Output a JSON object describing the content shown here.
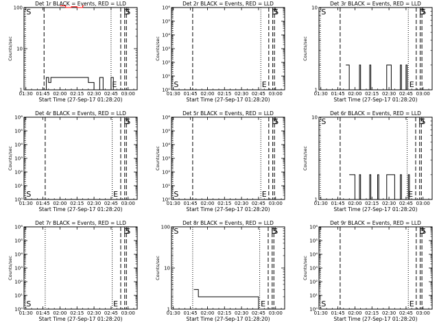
{
  "chart_data": [
    {
      "type": "line",
      "title": "Det 1r BLACK = Events, RED = LLD",
      "xlabel": "Start Time (27-Sep-17 01:28:20)",
      "ylabel": "Counts/sec",
      "ylim": [
        1,
        100
      ],
      "yscale": "log",
      "yticks": [
        {
          "v": 1,
          "t": "1"
        },
        {
          "v": 10,
          "t": "10"
        },
        {
          "v": 100,
          "t": "100"
        }
      ],
      "xticks": [
        "01:30",
        "01:45",
        "02:00",
        "02:15",
        "02:30",
        "02:45",
        "03:00"
      ],
      "xlim": [
        "01:28:20",
        "03:08:00"
      ],
      "vlines": [
        {
          "time": "01:29:30",
          "style": "dotted",
          "label": "S"
        },
        {
          "time": "01:46:00",
          "style": "dashed"
        },
        {
          "time": "02:45:00",
          "style": "dotted",
          "label": "E"
        },
        {
          "time": "02:53:30",
          "style": "dashed"
        },
        {
          "time": "02:57:00",
          "style": "dashed",
          "label": "S"
        },
        {
          "time": "02:58:30",
          "style": "dashed",
          "label": "D"
        }
      ],
      "series": [
        {
          "color": "#000000",
          "style": "step",
          "times": [
            "01:28:20",
            "01:48:00",
            "01:50:00",
            "01:52:00",
            "02:25:00",
            "02:30:00",
            "02:35:00",
            "02:38:00",
            "02:45:00",
            "02:47:00"
          ],
          "values": [
            1,
            2,
            1.5,
            2,
            1.5,
            1,
            2,
            1,
            2,
            1
          ]
        },
        {
          "color": "#ff0000",
          "style": "step",
          "times": [
            "02:00:00",
            "02:05:00",
            "02:10:00",
            "02:15:00",
            "02:20:00"
          ],
          "values": [
            110,
            100,
            105,
            100,
            110
          ]
        }
      ]
    },
    {
      "type": "line",
      "title": "Det 2r BLACK = Events, RED = LLD",
      "xlabel": "Start Time (27-Sep-17 01:28:20)",
      "ylabel": "Counts/sec",
      "ylim": [
        1,
        1000000
      ],
      "yscale": "log",
      "yticks": [
        {
          "v": 1,
          "t": "10⁰"
        },
        {
          "v": 10,
          "t": "10¹"
        },
        {
          "v": 100,
          "t": "10²"
        },
        {
          "v": 1000,
          "t": "10³"
        },
        {
          "v": 10000,
          "t": "10⁴"
        },
        {
          "v": 100000,
          "t": "10⁵"
        },
        {
          "v": 1000000,
          "t": "10⁶"
        }
      ],
      "xticks": [
        "01:30",
        "01:45",
        "02:00",
        "02:15",
        "02:30",
        "02:45",
        "03:00"
      ],
      "xlim": [
        "01:28:20",
        "03:08:00"
      ],
      "vlines": [
        {
          "time": "01:29:30",
          "style": "dotted",
          "label": "S"
        },
        {
          "time": "01:47:00",
          "style": "dashed"
        },
        {
          "time": "02:47:00",
          "style": "dotted",
          "label": "E"
        },
        {
          "time": "02:54:00",
          "style": "dashed"
        },
        {
          "time": "02:57:30",
          "style": "dashed",
          "label": "S"
        },
        {
          "time": "02:59:00",
          "style": "dashed",
          "label": "D"
        }
      ],
      "series": []
    },
    {
      "type": "line",
      "title": "Det 3r BLACK = Events, RED = LLD",
      "xlabel": "Start Time (27-Sep-17 01:28:20)",
      "ylabel": "Counts/sec",
      "ylim": [
        1,
        10
      ],
      "yscale": "log",
      "yticks": [
        {
          "v": 1,
          "t": "1"
        },
        {
          "v": 10,
          "t": "10"
        }
      ],
      "xticks": [
        "01:30",
        "01:45",
        "02:00",
        "02:15",
        "02:30",
        "02:45",
        "03:00"
      ],
      "xlim": [
        "01:28:20",
        "03:08:00"
      ],
      "vlines": [
        {
          "time": "01:29:30",
          "style": "dotted",
          "label": "S"
        },
        {
          "time": "01:47:00",
          "style": "dashed"
        },
        {
          "time": "02:47:00",
          "style": "dotted",
          "label": "E"
        },
        {
          "time": "02:54:00",
          "style": "dashed"
        },
        {
          "time": "02:57:30",
          "style": "dashed",
          "label": "S"
        },
        {
          "time": "02:59:00",
          "style": "dashed",
          "label": "D"
        }
      ],
      "series": [
        {
          "color": "#000000",
          "style": "step",
          "times": [
            "01:52:00",
            "01:55:00",
            "02:04:00",
            "02:05:00",
            "02:13:00",
            "02:14:00",
            "02:28:00",
            "02:32:00",
            "02:40:00",
            "02:41:00",
            "02:45:00",
            "02:46:00"
          ],
          "values": [
            2,
            1,
            2,
            1,
            2,
            1,
            2,
            1,
            2,
            1,
            2,
            1
          ]
        }
      ]
    },
    {
      "type": "line",
      "title": "Det 4r BLACK = Events, RED = LLD",
      "xlabel": "Start Time (27-Sep-17 01:28:20)",
      "ylabel": "Counts/sec",
      "ylim": [
        1,
        1000000
      ],
      "yscale": "log",
      "yticks": [
        {
          "v": 1,
          "t": "10⁰"
        },
        {
          "v": 10,
          "t": "10¹"
        },
        {
          "v": 100,
          "t": "10²"
        },
        {
          "v": 1000,
          "t": "10³"
        },
        {
          "v": 10000,
          "t": "10⁴"
        },
        {
          "v": 100000,
          "t": "10⁵"
        },
        {
          "v": 1000000,
          "t": "10⁶"
        }
      ],
      "xticks": [
        "01:30",
        "01:45",
        "02:00",
        "02:15",
        "02:30",
        "02:45",
        "03:00"
      ],
      "xlim": [
        "01:28:20",
        "03:08:00"
      ],
      "vlines": [
        {
          "time": "01:29:30",
          "style": "dotted",
          "label": "S"
        },
        {
          "time": "01:47:00",
          "style": "dashed"
        },
        {
          "time": "02:46:00",
          "style": "dotted",
          "label": "E"
        },
        {
          "time": "02:53:30",
          "style": "dashed"
        },
        {
          "time": "02:57:00",
          "style": "dashed",
          "label": "S"
        },
        {
          "time": "02:58:30",
          "style": "dashed",
          "label": "D"
        }
      ],
      "series": []
    },
    {
      "type": "line",
      "title": "Det 5r BLACK = Events, RED = LLD",
      "xlabel": "Start Time (27-Sep-17 01:28:20)",
      "ylabel": "Counts/sec",
      "ylim": [
        1,
        1000000
      ],
      "yscale": "log",
      "yticks": [
        {
          "v": 1,
          "t": "10⁰"
        },
        {
          "v": 10,
          "t": "10¹"
        },
        {
          "v": 100,
          "t": "10²"
        },
        {
          "v": 1000,
          "t": "10³"
        },
        {
          "v": 10000,
          "t": "10⁴"
        },
        {
          "v": 100000,
          "t": "10⁵"
        },
        {
          "v": 1000000,
          "t": "10⁶"
        }
      ],
      "xticks": [
        "01:30",
        "01:45",
        "02:00",
        "02:15",
        "02:30",
        "02:45",
        "03:00"
      ],
      "xlim": [
        "01:28:20",
        "03:08:00"
      ],
      "vlines": [
        {
          "time": "01:29:30",
          "style": "dotted",
          "label": "S"
        },
        {
          "time": "01:47:00",
          "style": "dashed"
        },
        {
          "time": "02:47:00",
          "style": "dotted",
          "label": "E"
        },
        {
          "time": "02:54:00",
          "style": "dashed"
        },
        {
          "time": "02:57:30",
          "style": "dashed",
          "label": "S"
        },
        {
          "time": "02:59:00",
          "style": "dashed",
          "label": "D"
        }
      ],
      "series": []
    },
    {
      "type": "line",
      "title": "Det 6r BLACK = Events, RED = LLD",
      "xlabel": "Start Time (27-Sep-17 01:28:20)",
      "ylabel": "Counts/sec",
      "ylim": [
        1,
        10
      ],
      "yscale": "log",
      "yticks": [
        {
          "v": 1,
          "t": "1"
        },
        {
          "v": 10,
          "t": "10"
        }
      ],
      "xticks": [
        "01:30",
        "01:45",
        "02:00",
        "02:15",
        "02:30",
        "02:45",
        "03:00"
      ],
      "xlim": [
        "01:28:20",
        "03:08:00"
      ],
      "vlines": [
        {
          "time": "01:29:30",
          "style": "dotted",
          "label": "S"
        },
        {
          "time": "01:47:00",
          "style": "dashed"
        },
        {
          "time": "02:46:00",
          "style": "dotted",
          "label": "E"
        },
        {
          "time": "02:53:30",
          "style": "dashed"
        },
        {
          "time": "02:57:00",
          "style": "dashed",
          "label": "S"
        },
        {
          "time": "02:58:30",
          "style": "dashed",
          "label": "D"
        }
      ],
      "series": [
        {
          "color": "#000000",
          "style": "step",
          "times": [
            "01:55:00",
            "02:00:00",
            "02:04:00",
            "02:05:00",
            "02:13:00",
            "02:14:00",
            "02:20:00",
            "02:21:00",
            "02:28:00",
            "02:35:00",
            "02:40:00",
            "02:41:00",
            "02:47:00",
            "02:48:00"
          ],
          "values": [
            2,
            1,
            2,
            1,
            2,
            1,
            2,
            1,
            2,
            1,
            2,
            1,
            2,
            1
          ]
        }
      ]
    },
    {
      "type": "line",
      "title": "Det 7r BLACK = Events, RED = LLD",
      "xlabel": "Start Time (27-Sep-17 01:28:20)",
      "ylabel": "Counts/sec",
      "ylim": [
        1,
        1000000
      ],
      "yscale": "log",
      "yticks": [
        {
          "v": 1,
          "t": "10⁰"
        },
        {
          "v": 10,
          "t": "10¹"
        },
        {
          "v": 100,
          "t": "10²"
        },
        {
          "v": 1000,
          "t": "10³"
        },
        {
          "v": 10000,
          "t": "10⁴"
        },
        {
          "v": 100000,
          "t": "10⁵"
        },
        {
          "v": 1000000,
          "t": "10⁶"
        }
      ],
      "xticks": [
        "01:30",
        "01:45",
        "02:00",
        "02:15",
        "02:30",
        "02:45",
        "03:00"
      ],
      "xlim": [
        "01:28:20",
        "03:08:00"
      ],
      "vlines": [
        {
          "time": "01:29:30",
          "style": "dotted",
          "label": "S"
        },
        {
          "time": "01:47:00",
          "style": "dotted"
        },
        {
          "time": "02:46:00",
          "style": "dotted",
          "label": "E"
        },
        {
          "time": "02:53:30",
          "style": "dashed"
        },
        {
          "time": "02:57:00",
          "style": "dashed",
          "label": "S"
        },
        {
          "time": "02:58:30",
          "style": "dashed",
          "label": "D"
        }
      ],
      "series": []
    },
    {
      "type": "line",
      "title": "Det 8r BLACK = Events, RED = LLD",
      "xlabel": "Start Time (27-Sep-17 01:28:20)",
      "ylabel": "Counts/sec",
      "ylim": [
        1,
        100
      ],
      "yscale": "log",
      "yticks": [
        {
          "v": 1,
          "t": "1"
        },
        {
          "v": 10,
          "t": "10"
        },
        {
          "v": 100,
          "t": "100"
        }
      ],
      "xticks": [
        "01:30",
        "01:45",
        "02:00",
        "02:15",
        "02:30",
        "02:45",
        "03:00"
      ],
      "xlim": [
        "01:28:20",
        "03:08:00"
      ],
      "vlines": [
        {
          "time": "01:29:30",
          "style": "dotted",
          "label": "S"
        },
        {
          "time": "01:47:00",
          "style": "dotted"
        },
        {
          "time": "02:46:00",
          "style": "dotted",
          "label": "E"
        },
        {
          "time": "02:53:30",
          "style": "dashed"
        },
        {
          "time": "02:57:00",
          "style": "dashed",
          "label": "S"
        },
        {
          "time": "02:58:30",
          "style": "dashed",
          "label": "D"
        }
      ],
      "series": [
        {
          "color": "#000000",
          "style": "step",
          "times": [
            "01:48:00",
            "01:52:00",
            "01:55:00",
            "02:45:00"
          ],
          "values": [
            3,
            2,
            2,
            1
          ]
        }
      ]
    },
    {
      "type": "line",
      "title": "Det 9r BLACK = Events, RED = LLD",
      "xlabel": "Start Time (27-Sep-17 01:28:20)",
      "ylabel": "Counts/sec",
      "ylim": [
        1,
        1000000
      ],
      "yscale": "log",
      "yticks": [
        {
          "v": 1,
          "t": "10⁰"
        },
        {
          "v": 10,
          "t": "10¹"
        },
        {
          "v": 100,
          "t": "10²"
        },
        {
          "v": 1000,
          "t": "10³"
        },
        {
          "v": 10000,
          "t": "10⁴"
        },
        {
          "v": 100000,
          "t": "10⁵"
        },
        {
          "v": 1000000,
          "t": "10⁶"
        }
      ],
      "xticks": [
        "01:30",
        "01:45",
        "02:00",
        "02:15",
        "02:30",
        "02:45",
        "03:00"
      ],
      "xlim": [
        "01:28:20",
        "03:08:00"
      ],
      "vlines": [
        {
          "time": "01:29:30",
          "style": "dotted",
          "label": "S"
        },
        {
          "time": "01:47:00",
          "style": "dashed"
        },
        {
          "time": "02:47:00",
          "style": "dotted",
          "label": "E"
        },
        {
          "time": "02:54:00",
          "style": "dashed"
        },
        {
          "time": "02:57:30",
          "style": "dashed",
          "label": "S"
        },
        {
          "time": "02:59:00",
          "style": "dashed",
          "label": "D"
        }
      ],
      "series": []
    }
  ]
}
